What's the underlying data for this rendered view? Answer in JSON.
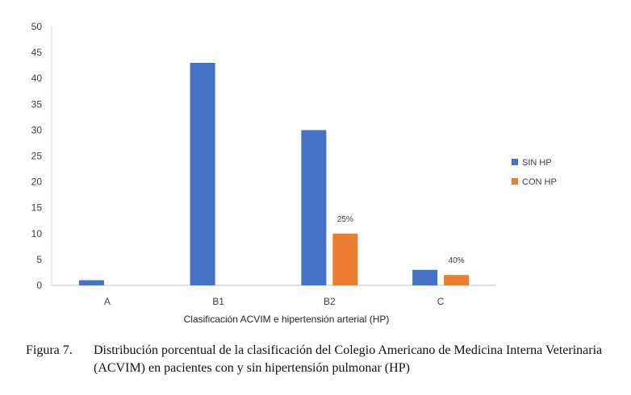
{
  "chart_data": {
    "type": "bar",
    "categories": [
      "A",
      "B1",
      "B2",
      "C"
    ],
    "series": [
      {
        "name": "SIN HP",
        "color": "#4472C4",
        "values": [
          1,
          43,
          30,
          3
        ]
      },
      {
        "name": "CON HP",
        "color": "#ED7D31",
        "values": [
          0,
          0,
          10,
          2
        ]
      }
    ],
    "data_labels": [
      {
        "series": "CON HP",
        "category": "B2",
        "text": "25%"
      },
      {
        "series": "CON HP",
        "category": "C",
        "text": "40%"
      }
    ],
    "xlabel": "Clasificación ACVIM e hipertensión arterial (HP)",
    "ylabel": "",
    "ylim": [
      0,
      50
    ],
    "yticks": [
      0,
      5,
      10,
      15,
      20,
      25,
      30,
      35,
      40,
      45,
      50
    ],
    "grid": false,
    "legend_position": "right"
  },
  "caption": {
    "label": "Figura 7.",
    "text": "Distribución porcentual de la clasificación del Colegio Americano de Medicina Interna Veterinaria (ACVIM) en pacientes con y sin hipertensión pulmonar (HP)"
  }
}
